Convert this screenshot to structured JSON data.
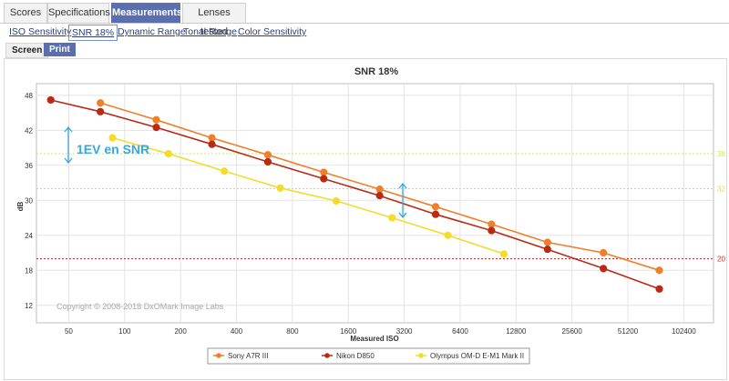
{
  "tabs": [
    {
      "label": "Scores",
      "active": false
    },
    {
      "label": "Specifications",
      "active": false
    },
    {
      "label": "Measurements",
      "active": true
    },
    {
      "label": "Lenses tested",
      "active": false
    }
  ],
  "subnav": [
    {
      "label": "ISO Sensitivity",
      "active": false
    },
    {
      "label": "SNR 18%",
      "active": true
    },
    {
      "label": "Dynamic Range",
      "active": false
    },
    {
      "label": "Tonal Range",
      "active": false
    },
    {
      "label": "Color Sensitivity",
      "active": false
    }
  ],
  "modes": {
    "screen": "Screen",
    "print": "Print"
  },
  "annotation": "1EV en SNR",
  "copyright": "Copyright © 2008-2018 DxOMark Image Labs",
  "colors": {
    "accent": "#5b6fae",
    "sony": "#f07f2a",
    "nikon": "#b82a14",
    "olympus": "#f2dd2c",
    "arrow": "#39a6de"
  },
  "chart_data": {
    "type": "line",
    "title": "SNR 18%",
    "xlabel": "Measured ISO",
    "ylabel": "dB",
    "x_scale": "log2",
    "x_ticks": [
      "50",
      "100",
      "200",
      "400",
      "800",
      "1600",
      "3200",
      "6400",
      "12800",
      "25600",
      "51200",
      "102400"
    ],
    "y_ticks": [
      "12",
      "18",
      "24",
      "30",
      "36",
      "42",
      "48"
    ],
    "ylim": [
      9,
      50
    ],
    "grid": true,
    "legend_position": "bottom",
    "reference_lines": [
      {
        "value": 38,
        "label": "38",
        "color": "#c8e86a"
      },
      {
        "value": 32,
        "label": "32",
        "color": "#e8d35a"
      },
      {
        "value": 20,
        "label": "20",
        "color": "#d03030"
      }
    ],
    "series": [
      {
        "name": "Sony A7R III",
        "color": "#f07f2a",
        "x": [
          74,
          148,
          295,
          590,
          1180,
          2360,
          4720,
          9440,
          18900,
          37800,
          75600
        ],
        "y": [
          46.7,
          43.8,
          40.7,
          37.8,
          34.8,
          31.9,
          28.9,
          25.9,
          22.8,
          21.0,
          18.0
        ]
      },
      {
        "name": "Nikon D850",
        "color": "#b82a14",
        "x": [
          40,
          74,
          148,
          295,
          590,
          1180,
          2360,
          4720,
          9440,
          18900,
          37800,
          75600
        ],
        "y": [
          47.2,
          45.2,
          42.5,
          39.6,
          36.6,
          33.7,
          30.8,
          27.6,
          24.8,
          21.6,
          18.3,
          14.8
        ]
      },
      {
        "name": "Olympus OM-D E-M1 Mark II",
        "color": "#f2dd2c",
        "x": [
          86,
          172,
          344,
          688,
          1376,
          2752,
          5504,
          11008
        ],
        "y": [
          40.7,
          38.0,
          35.0,
          32.1,
          29.9,
          27.0,
          24.0,
          20.8
        ]
      }
    ]
  }
}
